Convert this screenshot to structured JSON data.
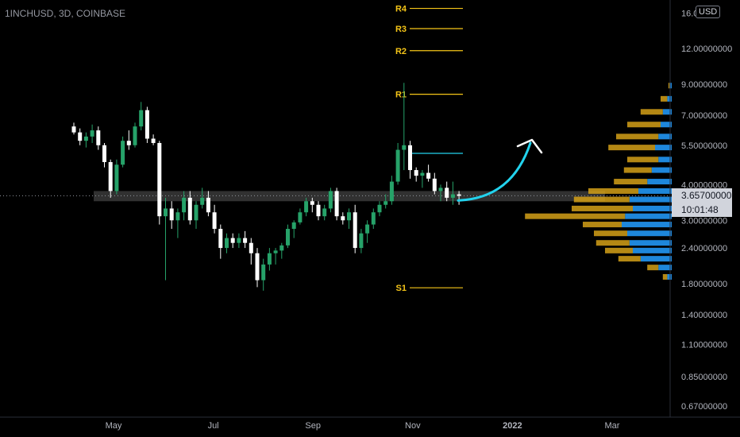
{
  "header": {
    "symbol": "1INCHUSD, 3D, COINBASE",
    "currency": "USD"
  },
  "price_badge": {
    "price": "3.65700000",
    "countdown": "10:01:48"
  },
  "colors": {
    "up": "#26a269",
    "down": "#ffffff",
    "pivot": "#f5c518",
    "arrow": "#22d3ee",
    "profile_blue": "#2196f3",
    "profile_gold": "#d4a017",
    "zone": "#3a3a3a"
  },
  "chart_data": {
    "type": "candlestick",
    "y_scale": "log",
    "ylim": [
      0.62,
      17
    ],
    "y_ticks": [
      "16.0",
      "12.00000000",
      "9.00000000",
      "7.00000000",
      "5.50000000",
      "4.00000000",
      "3.00000000",
      "2.40000000",
      "1.80000000",
      "1.40000000",
      "1.10000000",
      "0.85000000",
      "0.67000000"
    ],
    "x_ticks": [
      "May",
      "Jul",
      "Sep",
      "Nov",
      "2022",
      "Mar"
    ],
    "candles": [
      {
        "o": 6.4,
        "h": 6.6,
        "l": 6.0,
        "c": 6.1
      },
      {
        "o": 6.1,
        "h": 6.3,
        "l": 5.5,
        "c": 5.7
      },
      {
        "o": 5.7,
        "h": 6.1,
        "l": 5.4,
        "c": 5.9
      },
      {
        "o": 5.9,
        "h": 6.5,
        "l": 5.6,
        "c": 6.2
      },
      {
        "o": 6.2,
        "h": 6.4,
        "l": 5.3,
        "c": 5.5
      },
      {
        "o": 5.5,
        "h": 5.6,
        "l": 4.6,
        "c": 4.8
      },
      {
        "o": 4.8,
        "h": 4.9,
        "l": 3.6,
        "c": 3.8
      },
      {
        "o": 3.8,
        "h": 4.9,
        "l": 3.7,
        "c": 4.7
      },
      {
        "o": 4.7,
        "h": 5.9,
        "l": 4.6,
        "c": 5.7
      },
      {
        "o": 5.7,
        "h": 6.2,
        "l": 5.3,
        "c": 5.5
      },
      {
        "o": 5.5,
        "h": 6.6,
        "l": 5.4,
        "c": 6.4
      },
      {
        "o": 6.4,
        "h": 7.8,
        "l": 6.2,
        "c": 7.3
      },
      {
        "o": 7.3,
        "h": 7.5,
        "l": 5.6,
        "c": 5.8
      },
      {
        "o": 5.8,
        "h": 6.0,
        "l": 5.5,
        "c": 5.6
      },
      {
        "o": 5.6,
        "h": 5.7,
        "l": 2.9,
        "c": 3.1
      },
      {
        "o": 3.1,
        "h": 3.6,
        "l": 1.85,
        "c": 3.3
      },
      {
        "o": 3.3,
        "h": 3.5,
        "l": 2.8,
        "c": 3.0
      },
      {
        "o": 3.0,
        "h": 3.3,
        "l": 2.6,
        "c": 3.2
      },
      {
        "o": 3.2,
        "h": 3.8,
        "l": 3.0,
        "c": 3.6
      },
      {
        "o": 3.6,
        "h": 3.8,
        "l": 2.9,
        "c": 3.0
      },
      {
        "o": 3.0,
        "h": 3.5,
        "l": 2.8,
        "c": 3.4
      },
      {
        "o": 3.4,
        "h": 3.9,
        "l": 3.3,
        "c": 3.6
      },
      {
        "o": 3.6,
        "h": 3.8,
        "l": 3.1,
        "c": 3.2
      },
      {
        "o": 3.2,
        "h": 3.4,
        "l": 2.7,
        "c": 2.8
      },
      {
        "o": 2.8,
        "h": 2.9,
        "l": 2.2,
        "c": 2.4
      },
      {
        "o": 2.4,
        "h": 2.7,
        "l": 2.3,
        "c": 2.6
      },
      {
        "o": 2.6,
        "h": 2.7,
        "l": 2.4,
        "c": 2.5
      },
      {
        "o": 2.5,
        "h": 2.7,
        "l": 2.4,
        "c": 2.6
      },
      {
        "o": 2.6,
        "h": 2.75,
        "l": 2.4,
        "c": 2.5
      },
      {
        "o": 2.5,
        "h": 2.6,
        "l": 2.1,
        "c": 2.3
      },
      {
        "o": 2.3,
        "h": 2.4,
        "l": 1.75,
        "c": 1.85
      },
      {
        "o": 1.85,
        "h": 2.2,
        "l": 1.7,
        "c": 2.1
      },
      {
        "o": 2.1,
        "h": 2.4,
        "l": 2.0,
        "c": 2.3
      },
      {
        "o": 2.3,
        "h": 2.4,
        "l": 2.1,
        "c": 2.35
      },
      {
        "o": 2.35,
        "h": 2.5,
        "l": 2.2,
        "c": 2.45
      },
      {
        "o": 2.45,
        "h": 2.9,
        "l": 2.4,
        "c": 2.8
      },
      {
        "o": 2.8,
        "h": 3.0,
        "l": 2.6,
        "c": 2.95
      },
      {
        "o": 2.95,
        "h": 3.3,
        "l": 2.9,
        "c": 3.2
      },
      {
        "o": 3.2,
        "h": 3.6,
        "l": 3.1,
        "c": 3.5
      },
      {
        "o": 3.5,
        "h": 3.6,
        "l": 3.2,
        "c": 3.4
      },
      {
        "o": 3.4,
        "h": 3.5,
        "l": 3.0,
        "c": 3.1
      },
      {
        "o": 3.1,
        "h": 3.4,
        "l": 3.0,
        "c": 3.3
      },
      {
        "o": 3.3,
        "h": 3.9,
        "l": 3.2,
        "c": 3.8
      },
      {
        "o": 3.8,
        "h": 3.9,
        "l": 3.0,
        "c": 3.1
      },
      {
        "o": 3.1,
        "h": 3.2,
        "l": 2.9,
        "c": 3.0
      },
      {
        "o": 3.0,
        "h": 3.3,
        "l": 2.8,
        "c": 3.2
      },
      {
        "o": 3.2,
        "h": 3.4,
        "l": 2.3,
        "c": 2.4
      },
      {
        "o": 2.4,
        "h": 2.8,
        "l": 2.3,
        "c": 2.7
      },
      {
        "o": 2.7,
        "h": 3.0,
        "l": 2.5,
        "c": 2.9
      },
      {
        "o": 2.9,
        "h": 3.3,
        "l": 2.8,
        "c": 3.2
      },
      {
        "o": 3.2,
        "h": 3.5,
        "l": 3.1,
        "c": 3.4
      },
      {
        "o": 3.4,
        "h": 3.7,
        "l": 3.3,
        "c": 3.5
      },
      {
        "o": 3.5,
        "h": 4.3,
        "l": 3.4,
        "c": 4.1
      },
      {
        "o": 4.1,
        "h": 5.6,
        "l": 4.0,
        "c": 5.3
      },
      {
        "o": 5.3,
        "h": 9.1,
        "l": 4.5,
        "c": 5.5
      },
      {
        "o": 5.5,
        "h": 5.7,
        "l": 4.2,
        "c": 4.5
      },
      {
        "o": 4.5,
        "h": 4.6,
        "l": 4.1,
        "c": 4.3
      },
      {
        "o": 4.3,
        "h": 4.5,
        "l": 3.9,
        "c": 4.4
      },
      {
        "o": 4.4,
        "h": 4.7,
        "l": 4.1,
        "c": 4.2
      },
      {
        "o": 4.2,
        "h": 4.4,
        "l": 3.7,
        "c": 3.8
      },
      {
        "o": 3.8,
        "h": 4.0,
        "l": 3.5,
        "c": 3.9
      },
      {
        "o": 3.9,
        "h": 4.1,
        "l": 3.5,
        "c": 3.6
      },
      {
        "o": 3.6,
        "h": 4.1,
        "l": 3.4,
        "c": 3.7
      },
      {
        "o": 3.7,
        "h": 3.8,
        "l": 3.4,
        "c": 3.657
      }
    ],
    "pivot_levels": [
      {
        "label": "R4",
        "value": 16.6
      },
      {
        "label": "R3",
        "value": 14.1
      },
      {
        "label": "R2",
        "value": 11.8
      },
      {
        "label": "R1",
        "value": 8.3
      },
      {
        "label": "",
        "value": 5.15
      },
      {
        "label": "S1",
        "value": 1.74
      }
    ],
    "support_zone": [
      3.5,
      3.8
    ],
    "last_price": 3.657,
    "projection": {
      "from": 3.52,
      "to": 5.6
    },
    "volume_profile": [
      {
        "price": 8.9,
        "up": 0.02,
        "down": 0.01
      },
      {
        "price": 8.0,
        "up": 0.04,
        "down": 0.06
      },
      {
        "price": 7.2,
        "up": 0.08,
        "down": 0.2
      },
      {
        "price": 6.5,
        "up": 0.1,
        "down": 0.3
      },
      {
        "price": 5.9,
        "up": 0.12,
        "down": 0.38
      },
      {
        "price": 5.4,
        "up": 0.15,
        "down": 0.42
      },
      {
        "price": 4.9,
        "up": 0.12,
        "down": 0.28
      },
      {
        "price": 4.5,
        "up": 0.18,
        "down": 0.25
      },
      {
        "price": 4.1,
        "up": 0.22,
        "down": 0.3
      },
      {
        "price": 3.8,
        "up": 0.3,
        "down": 0.45
      },
      {
        "price": 3.55,
        "up": 0.38,
        "down": 0.5
      },
      {
        "price": 3.3,
        "up": 0.35,
        "down": 0.55
      },
      {
        "price": 3.1,
        "up": 0.42,
        "down": 0.9
      },
      {
        "price": 2.9,
        "up": 0.45,
        "down": 0.35
      },
      {
        "price": 2.7,
        "up": 0.4,
        "down": 0.3
      },
      {
        "price": 2.5,
        "up": 0.38,
        "down": 0.3
      },
      {
        "price": 2.35,
        "up": 0.35,
        "down": 0.25
      },
      {
        "price": 2.2,
        "up": 0.28,
        "down": 0.2
      },
      {
        "price": 2.05,
        "up": 0.12,
        "down": 0.1
      },
      {
        "price": 1.9,
        "up": 0.04,
        "down": 0.04
      }
    ]
  }
}
